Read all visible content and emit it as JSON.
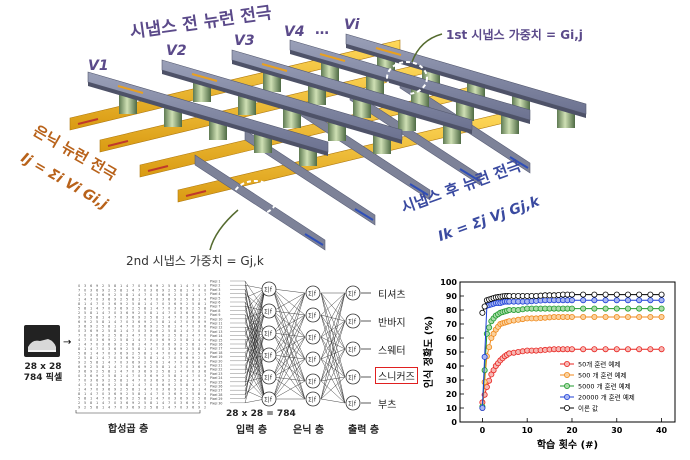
{
  "crossbar": {
    "pre_electrode_title": "시냅스 전 뉴런 전극",
    "voltages": [
      "V1",
      "V2",
      "V3",
      "V4",
      "…",
      "Vi"
    ],
    "hidden_electrode_title": "은닉 뉴런 전극",
    "hidden_formula": "Ij = Σi Vi Gi,j",
    "post_electrode_title": "시냅스 후 뉴런 전극",
    "post_formula": "Ik = Σj Vj Gj,k",
    "weight1": "1st 시냅스 가중치 = Gi,j",
    "weight2": "2nd 시냅스 가중치 = Gj,k"
  },
  "network": {
    "input_image_caption": [
      "28 x 28",
      "784 픽셀"
    ],
    "conv_label": "합성곱 층",
    "input_count": "28 x 28 = 784",
    "input_label": "입력 층",
    "hidden_label": "은닉 층",
    "output_label": "출력 층",
    "outputs": [
      "티셔츠",
      "반바지",
      "스웨터",
      "스니커즈",
      "부츠"
    ],
    "highlighted_output": "스니커즈",
    "pixel_prefix": "Pixel"
  },
  "chart_data": {
    "type": "line",
    "xlabel": "학습 횟수 (#)",
    "ylabel": "인식 정확도 (%)",
    "xlim": [
      -5,
      43
    ],
    "ylim": [
      0,
      100
    ],
    "xticks": [
      0,
      10,
      20,
      30,
      40
    ],
    "yticks": [
      0,
      10,
      20,
      30,
      40,
      50,
      60,
      70,
      80,
      90,
      100
    ],
    "legend_position": "bottom-right",
    "series": [
      {
        "name": "50개 훈련 예제",
        "color": "#e8231f",
        "fill": "#f7b7b3",
        "x": [
          0,
          1,
          2,
          3,
          4,
          5,
          6,
          8,
          10,
          12,
          14,
          16,
          18,
          20,
          25,
          30,
          35,
          40
        ],
        "values": [
          14,
          25,
          34,
          40,
          44,
          47,
          49,
          50,
          51,
          51,
          51.5,
          52,
          52,
          52,
          52,
          52,
          52,
          52
        ]
      },
      {
        "name": "500 개 훈련 예제",
        "color": "#f08a1c",
        "fill": "#fad19e",
        "x": [
          0,
          1,
          2,
          3,
          4,
          5,
          6,
          8,
          10,
          12,
          14,
          16,
          18,
          20,
          25,
          30,
          35,
          40
        ],
        "values": [
          10,
          47,
          60,
          66,
          70,
          71,
          72,
          73,
          74,
          74,
          74.5,
          75,
          75,
          75,
          75,
          75,
          75,
          75
        ]
      },
      {
        "name": "5000 개 훈련 예제",
        "color": "#1f9a2e",
        "fill": "#a9dca8",
        "x": [
          0,
          1,
          2,
          3,
          4,
          5,
          6,
          8,
          10,
          12,
          14,
          16,
          18,
          20,
          25,
          30,
          35,
          40
        ],
        "values": [
          11,
          63,
          72,
          76,
          78,
          79,
          80,
          80,
          81,
          81,
          81,
          81,
          81,
          81,
          81,
          81,
          81,
          81
        ]
      },
      {
        "name": "20000 개 훈련 예제",
        "color": "#1c3fd6",
        "fill": "#a8b6f2",
        "x": [
          0,
          1,
          2,
          3,
          4,
          5,
          6,
          8,
          10,
          12,
          14,
          16,
          18,
          20,
          25,
          30,
          35,
          40
        ],
        "values": [
          10,
          83,
          84,
          85,
          85,
          86,
          86,
          86,
          86,
          86.5,
          87,
          87,
          87,
          87,
          87,
          87,
          87,
          87
        ]
      },
      {
        "name": "이론 값",
        "color": "#000000",
        "fill": "#ffffff",
        "x": [
          0,
          1,
          2,
          3,
          4,
          5,
          6,
          8,
          10,
          12,
          14,
          16,
          18,
          20,
          25,
          30,
          35,
          40
        ],
        "values": [
          78,
          87,
          88,
          89,
          89.5,
          90,
          90,
          90,
          90,
          90,
          90.5,
          90.5,
          91,
          91,
          91,
          91,
          91,
          91
        ]
      }
    ]
  }
}
